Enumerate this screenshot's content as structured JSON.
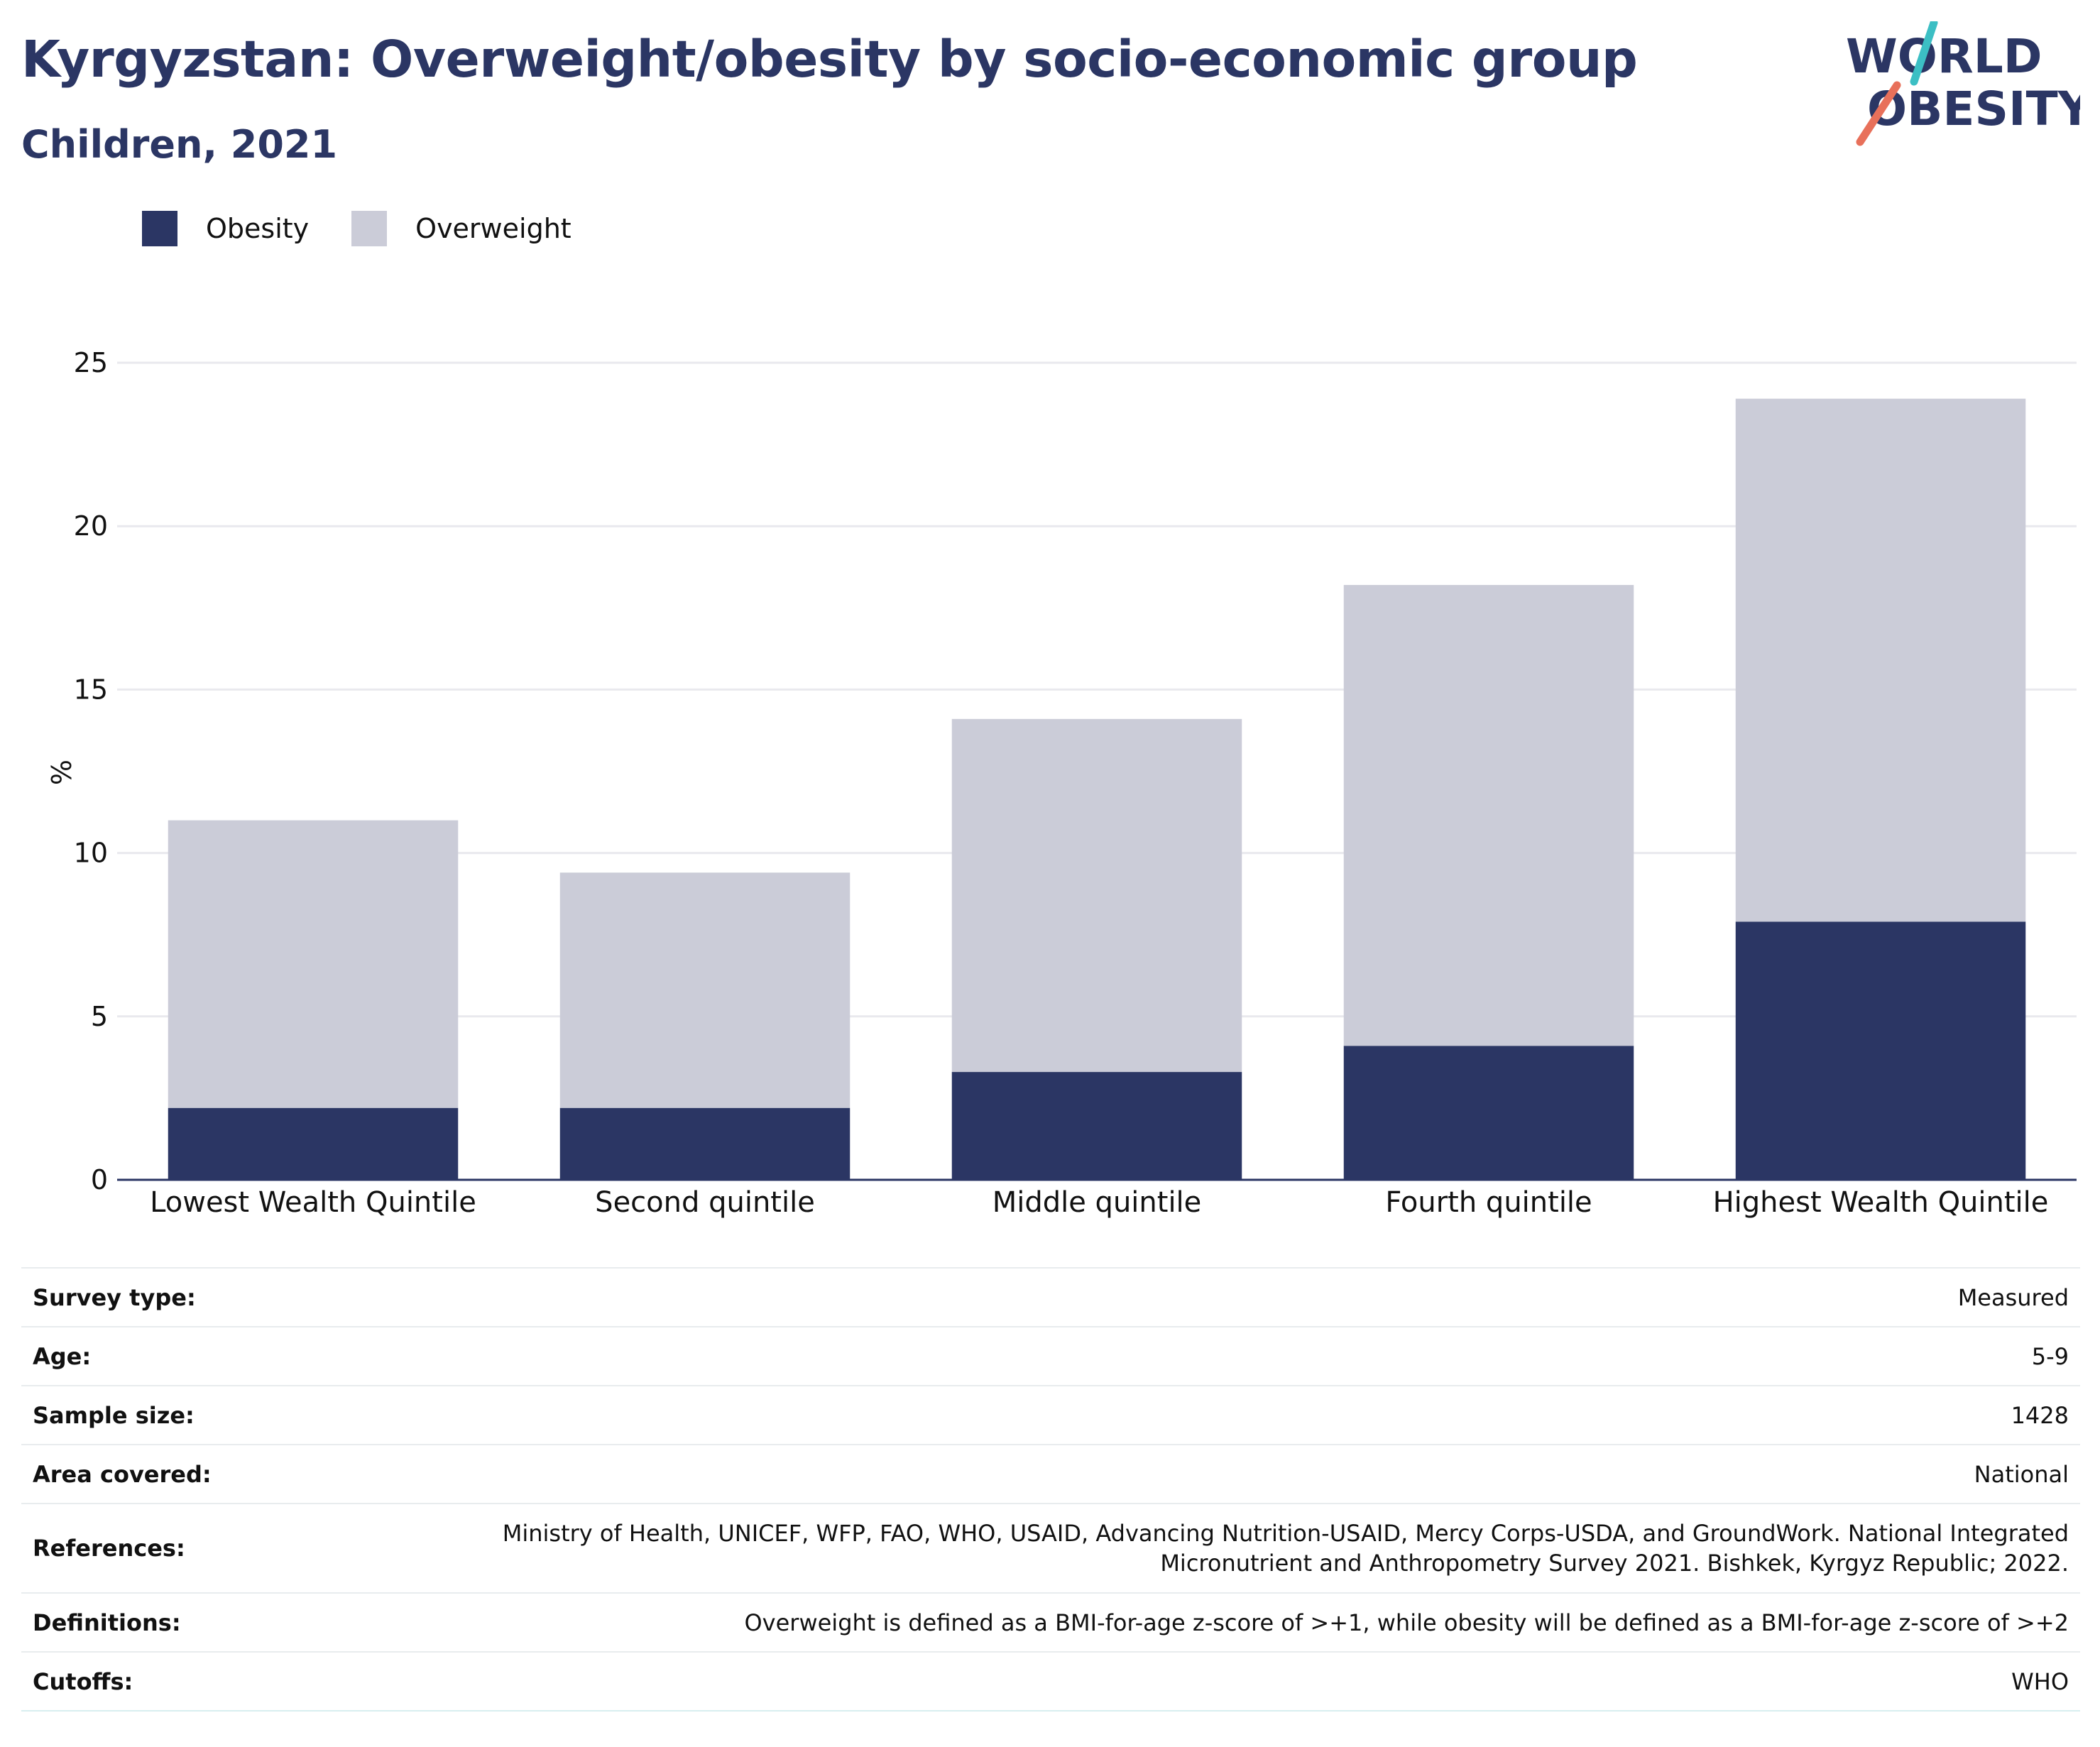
{
  "header": {
    "title": "Kyrgyzstan: Overweight/obesity by socio-economic group",
    "subtitle": "Children, 2021"
  },
  "logo": {
    "line1": "WORLD",
    "line2": "OBESITY",
    "accent_teal": "#3cbfc4",
    "accent_coral": "#e8705a",
    "text_color": "#2b3664"
  },
  "colors": {
    "obesity": "#2b3664",
    "overweight": "#cbccd8",
    "axis": "#2b3664",
    "grid": "#e9e9ee"
  },
  "legend": [
    {
      "label": "Obesity",
      "color": "#2b3664"
    },
    {
      "label": "Overweight",
      "color": "#cbccd8"
    }
  ],
  "chart_data": {
    "type": "bar",
    "stacked": true,
    "title": "Kyrgyzstan: Overweight/obesity by socio-economic group",
    "subtitle": "Children, 2021",
    "xlabel": "",
    "ylabel": "%",
    "ylim": [
      0,
      25
    ],
    "yticks": [
      0,
      5,
      10,
      15,
      20,
      25
    ],
    "grid": true,
    "legend_position": "top-left",
    "categories": [
      "Lowest Wealth Quintile",
      "Second quintile",
      "Middle quintile",
      "Fourth quintile",
      "Highest Wealth Quintile"
    ],
    "series": [
      {
        "name": "Obesity",
        "values": [
          2.2,
          2.2,
          3.3,
          4.1,
          7.9
        ]
      },
      {
        "name": "Overweight",
        "values": [
          8.8,
          7.2,
          10.8,
          14.1,
          16.0
        ]
      }
    ]
  },
  "meta": [
    {
      "label": "Survey type:",
      "value": "Measured"
    },
    {
      "label": "Age:",
      "value": "5-9"
    },
    {
      "label": "Sample size:",
      "value": "1428"
    },
    {
      "label": "Area covered:",
      "value": "National"
    },
    {
      "label": "References:",
      "value": "Ministry of Health, UNICEF, WFP, FAO, WHO, USAID, Advancing Nutrition-USAID, Mercy Corps-USDA, and GroundWork. National Integrated Micronutrient and Anthropometry Survey 2021. Bishkek, Kyrgyz Republic; 2022."
    },
    {
      "label": "Definitions:",
      "value": "Overweight is defined as a BMI-for-age z-score of >+1, while obesity will be defined as a BMI-for-age z-score of >+2"
    },
    {
      "label": "Cutoffs:",
      "value": "WHO"
    }
  ]
}
